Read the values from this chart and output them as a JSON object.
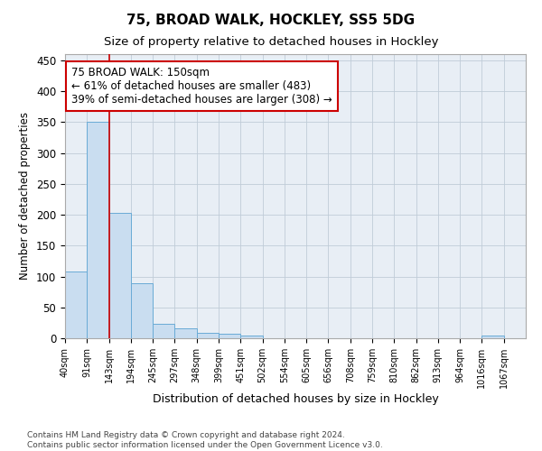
{
  "title": "75, BROAD WALK, HOCKLEY, SS5 5DG",
  "subtitle": "Size of property relative to detached houses in Hockley",
  "xlabel": "Distribution of detached houses by size in Hockley",
  "ylabel": "Number of detached properties",
  "bar_values": [
    108,
    350,
    203,
    89,
    24,
    16,
    9,
    7,
    4,
    0,
    0,
    0,
    0,
    0,
    0,
    0,
    0,
    0,
    0,
    4,
    0
  ],
  "bin_labels": [
    "40sqm",
    "91sqm",
    "143sqm",
    "194sqm",
    "245sqm",
    "297sqm",
    "348sqm",
    "399sqm",
    "451sqm",
    "502sqm",
    "554sqm",
    "605sqm",
    "656sqm",
    "708sqm",
    "759sqm",
    "810sqm",
    "862sqm",
    "913sqm",
    "964sqm",
    "1016sqm",
    "1067sqm"
  ],
  "bar_color": "#c9ddf0",
  "bar_edge_color": "#6aabd6",
  "grid_color": "#c0ccd8",
  "bg_color": "#e8eef5",
  "vline_x": 2,
  "vline_color": "#cc0000",
  "annotation_text": "75 BROAD WALK: 150sqm\n← 61% of detached houses are smaller (483)\n39% of semi-detached houses are larger (308) →",
  "annotation_box_color": "white",
  "annotation_box_edge": "#cc0000",
  "footer_text": "Contains HM Land Registry data © Crown copyright and database right 2024.\nContains public sector information licensed under the Open Government Licence v3.0.",
  "ylim": [
    0,
    460
  ],
  "yticks": [
    0,
    50,
    100,
    150,
    200,
    250,
    300,
    350,
    400,
    450
  ]
}
